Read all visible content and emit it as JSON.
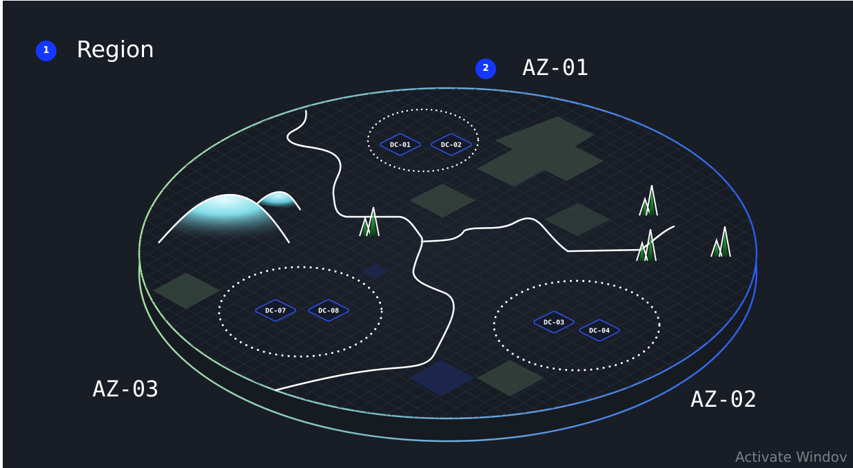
{
  "region": {
    "badge": "1",
    "title": "Region"
  },
  "availability_zones": [
    {
      "label": "AZ-01",
      "badge": "2",
      "datacenters": [
        "DC-01",
        "DC-02"
      ]
    },
    {
      "label": "AZ-02",
      "datacenters": [
        "DC-03",
        "DC-04"
      ]
    },
    {
      "label": "AZ-03",
      "datacenters": [
        "DC-07",
        "DC-08"
      ]
    }
  ],
  "watermark": "Activate Windov",
  "colors": {
    "background": "#191d25",
    "badge": "#1438ff",
    "disc_edge_left": "#a5e3a0",
    "disc_edge_right": "#2a5cf0",
    "datacenter_border": "#2f4fe0",
    "tree": "#2ecc40",
    "terrain_patch": "#3a4a40"
  },
  "icons": [
    "mountain-icon",
    "tree-icon",
    "datacenter-icon"
  ]
}
